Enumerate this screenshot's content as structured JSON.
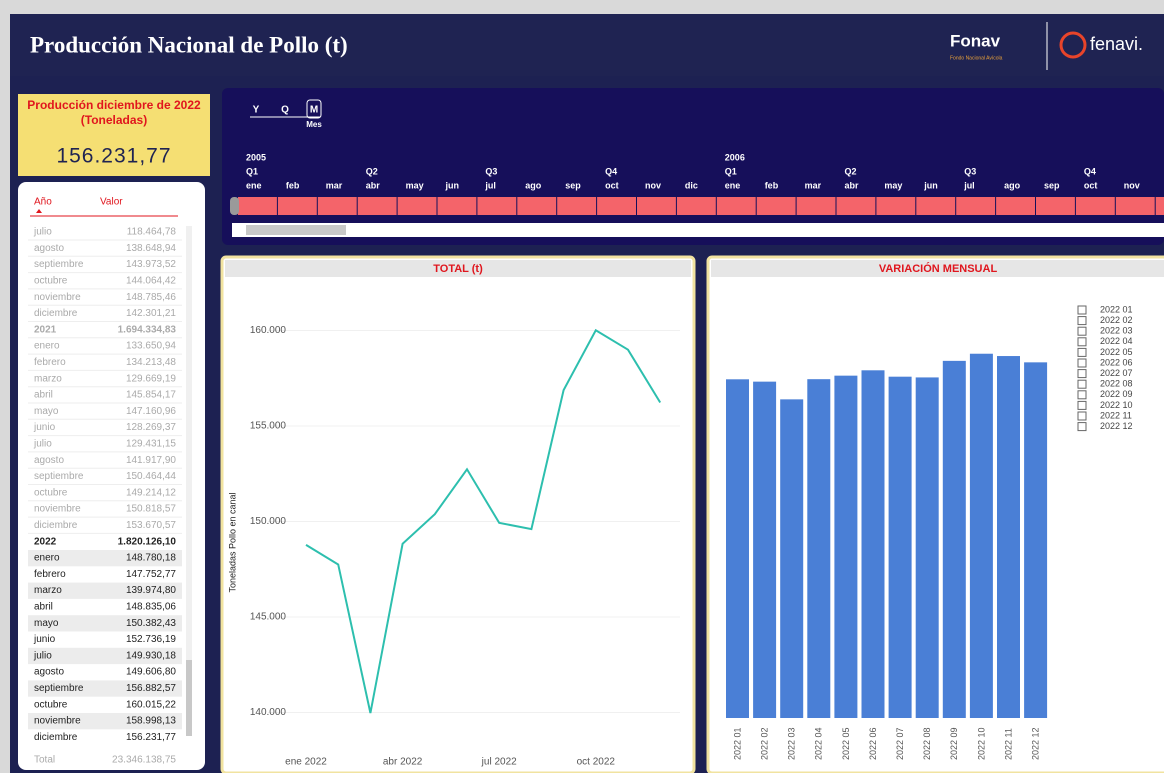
{
  "header": {
    "title": "Producción Nacional de Pollo (t)",
    "logo_1": "Fonav",
    "logo_1_subtitle": "Fondo Nacional Avícola",
    "logo_2": "fenavi."
  },
  "kpi": {
    "label": "Producción diciembre de 2022 (Toneladas)",
    "value": "156.231,77"
  },
  "table": {
    "columns": [
      "Año",
      "Valor"
    ],
    "rows": [
      [
        "julio",
        "118.464,78"
      ],
      [
        "agosto",
        "138.648,94"
      ],
      [
        "septiembre",
        "143.973,52"
      ],
      [
        "octubre",
        "144.064,42"
      ],
      [
        "noviembre",
        "148.785,46"
      ],
      [
        "diciembre",
        "142.301,21"
      ],
      [
        "2021",
        "1.694.334,83"
      ],
      [
        "enero",
        "133.650,94"
      ],
      [
        "febrero",
        "134.213,48"
      ],
      [
        "marzo",
        "129.669,19"
      ],
      [
        "abril",
        "145.854,17"
      ],
      [
        "mayo",
        "147.160,96"
      ],
      [
        "junio",
        "128.269,37"
      ],
      [
        "julio",
        "129.431,15"
      ],
      [
        "agosto",
        "141.917,90"
      ],
      [
        "septiembre",
        "150.464,44"
      ],
      [
        "octubre",
        "149.214,12"
      ],
      [
        "noviembre",
        "150.818,57"
      ],
      [
        "diciembre",
        "153.670,57"
      ],
      [
        "2022",
        "1.820.126,10"
      ],
      [
        "enero",
        "148.780,18"
      ],
      [
        "febrero",
        "147.752,77"
      ],
      [
        "marzo",
        "139.974,80"
      ],
      [
        "abril",
        "148.835,06"
      ],
      [
        "mayo",
        "150.382,43"
      ],
      [
        "junio",
        "152.736,19"
      ],
      [
        "julio",
        "149.930,18"
      ],
      [
        "agosto",
        "149.606,80"
      ],
      [
        "septiembre",
        "156.882,57"
      ],
      [
        "octubre",
        "160.015,22"
      ],
      [
        "noviembre",
        "158.998,13"
      ],
      [
        "diciembre",
        "156.231,77"
      ]
    ],
    "total": [
      "Total",
      "23.346.138,75"
    ]
  },
  "timeline": {
    "levels": [
      "Y",
      "Q",
      "M"
    ],
    "level_label": "Mes",
    "years": [
      "2005",
      "2006"
    ],
    "quarters": [
      "Q1",
      "Q2",
      "Q3",
      "Q4"
    ],
    "months": [
      "ene",
      "feb",
      "mar",
      "abr",
      "may",
      "jun",
      "jul",
      "ago",
      "sep",
      "oct",
      "nov",
      "dic"
    ]
  },
  "chart_data": [
    {
      "type": "line",
      "title": "TOTAL (t)",
      "y_label": "Toneladas Pollo en canal",
      "categories": [
        "ene 2022",
        null,
        null,
        "abr 2022",
        null,
        null,
        "jul 2022",
        null,
        null,
        "oct 2022",
        null,
        null
      ],
      "values": [
        148780.18,
        147752.77,
        139974.8,
        148835.06,
        150382.43,
        152736.19,
        149930.18,
        149606.8,
        156882.57,
        160015.22,
        158998.13,
        156231.77
      ],
      "color": "#2dbfae",
      "ylim": [
        138300,
        161600
      ],
      "yticks": [
        {
          "value": 140000,
          "label": "140.000"
        },
        {
          "value": 145000,
          "label": "145.000"
        },
        {
          "value": 150000,
          "label": "150.000"
        },
        {
          "value": 155000,
          "label": "155.000"
        },
        {
          "value": 160000,
          "label": "160.000"
        }
      ],
      "grid": true
    },
    {
      "type": "bar",
      "title": "VARIACIÓN MENSUAL",
      "categories": [
        "2022 01",
        "2022 02",
        "2022 03",
        "2022 04",
        "2022 05",
        "2022 06",
        "2022 07",
        "2022 08",
        "2022 09",
        "2022 10",
        "2022 11",
        "2022 12"
      ],
      "values": [
        148780.18,
        147752.77,
        139974.8,
        148835.06,
        150382.43,
        152736.19,
        149930.18,
        149606.8,
        156882.57,
        160015.22,
        158998.13,
        156231.77
      ],
      "color": "#4a7fd6",
      "ylim": [
        0,
        170000
      ],
      "legend": "right"
    }
  ]
}
